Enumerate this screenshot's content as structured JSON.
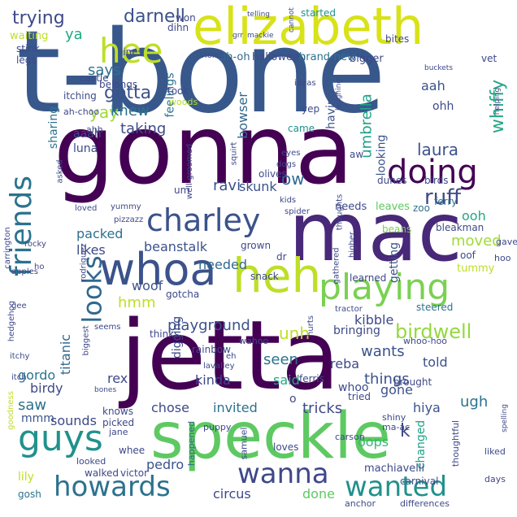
{
  "words": [
    {
      "t": "t-bone",
      "c": "#38588c"
    },
    {
      "t": "gonna",
      "c": "#440154"
    },
    {
      "t": "mac",
      "c": "#482878"
    },
    {
      "t": "jetta",
      "c": "#440154"
    },
    {
      "t": "speckle",
      "c": "#5ec962"
    },
    {
      "t": "elizabeth",
      "c": "#d8e219"
    },
    {
      "t": "whoa",
      "c": "#3b528b"
    },
    {
      "t": "heh",
      "c": "#bddf26"
    },
    {
      "t": "hee",
      "c": "#bddf26"
    },
    {
      "t": "doing",
      "c": "#440154"
    },
    {
      "t": "charley",
      "c": "#3b528b"
    },
    {
      "t": "friends",
      "c": "#2c728e"
    },
    {
      "t": "playing",
      "c": "#7ad151"
    },
    {
      "t": "guys",
      "c": "#21918c"
    },
    {
      "t": "howards",
      "c": "#2c728e"
    },
    {
      "t": "wanna",
      "c": "#3e4989"
    },
    {
      "t": "wanted",
      "c": "#21918c"
    },
    {
      "t": "looks",
      "c": "#31688e"
    },
    {
      "t": "birdwell",
      "c": "#95d840"
    },
    {
      "t": "trying",
      "c": "#3e4989"
    },
    {
      "t": "darnell",
      "c": "#3b528b"
    },
    {
      "t": "ya",
      "c": "#22a884"
    },
    {
      "t": "says",
      "c": "#2c728e"
    },
    {
      "t": "gotta",
      "c": "#3b528b"
    },
    {
      "t": "yay",
      "c": "#a0da39"
    },
    {
      "t": "knew",
      "c": "#2c728e"
    },
    {
      "t": "taking",
      "c": "#3e4989"
    },
    {
      "t": "whiffy",
      "c": "#22a884"
    },
    {
      "t": "ruff",
      "c": "#3e4989"
    },
    {
      "t": "laura",
      "c": "#3b528b"
    },
    {
      "t": "umbrella",
      "c": "#1fa188"
    },
    {
      "t": "ow",
      "c": "#31688e"
    },
    {
      "t": "ravi",
      "c": "#3b528b"
    },
    {
      "t": "skunk",
      "c": "#3b528b"
    },
    {
      "t": "packed",
      "c": "#2c728e"
    },
    {
      "t": "likes",
      "c": "#3e4989"
    },
    {
      "t": "beanstalk",
      "c": "#3b528b"
    },
    {
      "t": "moved",
      "c": "#a0da39"
    },
    {
      "t": "ooh",
      "c": "#22a884"
    },
    {
      "t": "needed",
      "c": "#31688e"
    },
    {
      "t": "woof",
      "c": "#3b528b"
    },
    {
      "t": "hmm",
      "c": "#bddf26"
    },
    {
      "t": "playground",
      "c": "#3b528b"
    },
    {
      "t": "unh",
      "c": "#bddf26"
    },
    {
      "t": "kibble",
      "c": "#3e4989"
    },
    {
      "t": "wants",
      "c": "#3b528b"
    },
    {
      "t": "titanic",
      "c": "#31688e"
    },
    {
      "t": "seen",
      "c": "#2c728e"
    },
    {
      "t": "reba",
      "c": "#3e4989"
    },
    {
      "t": "things",
      "c": "#3b528b"
    },
    {
      "t": "told",
      "c": "#3b528b"
    },
    {
      "t": "said",
      "c": "#22a884"
    },
    {
      "t": "gordo",
      "c": "#2c728e"
    },
    {
      "t": "rex",
      "c": "#3e4989"
    },
    {
      "t": "birdy",
      "c": "#3e4989"
    },
    {
      "t": "kinda",
      "c": "#3e4989"
    },
    {
      "t": "saw",
      "c": "#2c728e"
    },
    {
      "t": "chose",
      "c": "#3e4989"
    },
    {
      "t": "invited",
      "c": "#2c728e"
    },
    {
      "t": "tricks",
      "c": "#3e4989"
    },
    {
      "t": "gone",
      "c": "#3b528b"
    },
    {
      "t": "hiya",
      "c": "#3b528b"
    },
    {
      "t": "ugh",
      "c": "#2c728e"
    },
    {
      "t": "sounds",
      "c": "#3e4989"
    },
    {
      "t": "oops",
      "c": "#35b779"
    },
    {
      "t": "done",
      "c": "#5ec962"
    },
    {
      "t": "pedro",
      "c": "#3b528b"
    },
    {
      "t": "circus",
      "c": "#3e4989"
    },
    {
      "t": "bowser",
      "c": "#31688e"
    },
    {
      "t": "feelings",
      "c": "#2c728e"
    },
    {
      "t": "aah",
      "c": "#3b528b"
    },
    {
      "t": "ohh",
      "c": "#3e4989"
    },
    {
      "t": "aaah",
      "c": "#3e4989"
    },
    {
      "t": "luna",
      "c": "#3e4989"
    },
    {
      "t": "sharing",
      "c": "#2c728e"
    },
    {
      "t": "having",
      "c": "#3b528b"
    },
    {
      "t": "looking",
      "c": "#3b528b"
    },
    {
      "t": "digging",
      "c": "#3e4989"
    },
    {
      "t": "bringing",
      "c": "#3e4989"
    },
    {
      "t": "getting",
      "c": "#3b528b"
    },
    {
      "t": "whoo",
      "c": "#3e4989"
    },
    {
      "t": "mmm",
      "c": "#3b528b"
    },
    {
      "t": "lily",
      "c": "#bddf26"
    },
    {
      "t": "whee",
      "c": "#3e4989"
    },
    {
      "t": "changed",
      "c": "#1fa188"
    },
    {
      "t": "machiavelli",
      "c": "#3e4989"
    },
    {
      "t": "carnival",
      "c": "#3e4989"
    },
    {
      "t": "gosh",
      "c": "#2c728e"
    },
    {
      "t": "walked",
      "c": "#3e4989"
    },
    {
      "t": "victor",
      "c": "#3e4989"
    },
    {
      "t": "loves",
      "c": "#3e4989"
    },
    {
      "t": "samuel",
      "c": "#3e4989"
    },
    {
      "t": "happened",
      "c": "#31688e"
    },
    {
      "t": "halloween",
      "c": "#3e4989"
    },
    {
      "t": "brand-new",
      "c": "#2c728e"
    },
    {
      "t": "bigger",
      "c": "#3e4989"
    },
    {
      "t": "uh-oh",
      "c": "#31688e"
    },
    {
      "t": "yep",
      "c": "#3e4989"
    },
    {
      "t": "came",
      "c": "#21918c"
    },
    {
      "t": "took",
      "c": "#3e4989"
    },
    {
      "t": "woods",
      "c": "#b5de2b"
    },
    {
      "t": "belongs",
      "c": "#3e4989"
    },
    {
      "t": "castle",
      "c": "#3e4989"
    },
    {
      "t": "itching",
      "c": "#3e4989"
    },
    {
      "t": "ah-choo",
      "c": "#3e4989"
    },
    {
      "t": "ahh",
      "c": "#3e4989"
    },
    {
      "t": "lines",
      "c": "#3e4989"
    },
    {
      "t": "won",
      "c": "#3e4989"
    },
    {
      "t": "dihn",
      "c": "#3e4989"
    },
    {
      "t": "waiting",
      "c": "#bddf26"
    },
    {
      "t": "stink",
      "c": "#3e4989"
    },
    {
      "t": "legs",
      "c": "#3e4989"
    },
    {
      "t": "started",
      "c": "#21918c"
    },
    {
      "t": "bites",
      "c": "#3e4989"
    },
    {
      "t": "vet",
      "c": "#3e4989"
    },
    {
      "t": "olives",
      "c": "#3e4989"
    },
    {
      "t": "dunes",
      "c": "#3e4989"
    },
    {
      "t": "birds",
      "c": "#3e4989"
    },
    {
      "t": "aw",
      "c": "#3e4989"
    },
    {
      "t": "um",
      "c": "#3e4989"
    },
    {
      "t": "ferry",
      "c": "#2c728e"
    },
    {
      "t": "leaves",
      "c": "#5ec962"
    },
    {
      "t": "needs",
      "c": "#3e4989"
    },
    {
      "t": "zoo",
      "c": "#2c728e"
    },
    {
      "t": "bleakman",
      "c": "#3e4989"
    },
    {
      "t": "beans",
      "c": "#7ad151"
    },
    {
      "t": "grown",
      "c": "#3e4989"
    },
    {
      "t": "snack",
      "c": "#3e4989"
    },
    {
      "t": "dr",
      "c": "#3e4989"
    },
    {
      "t": "gave",
      "c": "#3e4989"
    },
    {
      "t": "hoo",
      "c": "#3e4989"
    },
    {
      "t": "oof",
      "c": "#3e4989"
    },
    {
      "t": "tummy",
      "c": "#bddf26"
    },
    {
      "t": "learned",
      "c": "#3e4989"
    },
    {
      "t": "gotcha",
      "c": "#3e4989"
    },
    {
      "t": "steered",
      "c": "#2c728e"
    },
    {
      "t": "thinks",
      "c": "#3e4989"
    },
    {
      "t": "rainbow",
      "c": "#3e4989"
    },
    {
      "t": "wahoo",
      "c": "#3e4989"
    },
    {
      "t": "whoo-hoo",
      "c": "#3e4989"
    },
    {
      "t": "tried",
      "c": "#3e4989"
    },
    {
      "t": "ferris",
      "c": "#3e4989"
    },
    {
      "t": "brought",
      "c": "#3e4989"
    },
    {
      "t": "knows",
      "c": "#3e4989"
    },
    {
      "t": "picked",
      "c": "#3e4989"
    },
    {
      "t": "jane",
      "c": "#3e4989"
    },
    {
      "t": "puppy",
      "c": "#3e4989"
    },
    {
      "t": "shiny",
      "c": "#3e4989"
    },
    {
      "t": "ma-ac",
      "c": "#3e4989"
    },
    {
      "t": "carson",
      "c": "#3e4989"
    },
    {
      "t": "liked",
      "c": "#3e4989"
    },
    {
      "t": "thoughtful",
      "c": "#3e4989"
    },
    {
      "t": "days",
      "c": "#3e4989"
    },
    {
      "t": "looked",
      "c": "#3e4989"
    },
    {
      "t": "anchor",
      "c": "#3e4989"
    },
    {
      "t": "differences",
      "c": "#3e4989"
    },
    {
      "t": "goodness",
      "c": "#bddf26"
    },
    {
      "t": "bones",
      "c": "#3e4989"
    },
    {
      "t": "itchy",
      "c": "#3e4989"
    },
    {
      "t": "itch",
      "c": "#3e4989"
    },
    {
      "t": "biggest",
      "c": "#3e4989"
    },
    {
      "t": "seems",
      "c": "#3e4989"
    },
    {
      "t": "hedgehog",
      "c": "#3e4989"
    },
    {
      "t": "gee",
      "c": "#3e4989"
    },
    {
      "t": "apples",
      "c": "#3e4989"
    },
    {
      "t": "rodriguez",
      "c": "#3e4989"
    },
    {
      "t": "ho",
      "c": "#3e4989"
    },
    {
      "t": "carrington",
      "c": "#3e4989"
    },
    {
      "t": "rocky",
      "c": "#3e4989"
    },
    {
      "t": "loved",
      "c": "#3e4989"
    },
    {
      "t": "yummy",
      "c": "#3e4989"
    },
    {
      "t": "pizzazz",
      "c": "#3e4989"
    },
    {
      "t": "asked",
      "c": "#3e4989"
    },
    {
      "t": "well-groomed",
      "c": "#3e4989"
    },
    {
      "t": "squirt",
      "c": "#3e4989"
    },
    {
      "t": "eyes",
      "c": "#3e4989"
    },
    {
      "t": "dogs",
      "c": "#3e4989"
    },
    {
      "t": "kids",
      "c": "#3e4989"
    },
    {
      "t": "spider",
      "c": "#3e4989"
    },
    {
      "t": "thoughts",
      "c": "#3e4989"
    },
    {
      "t": "gathered",
      "c": "#3e4989"
    },
    {
      "t": "higher",
      "c": "#3e4989"
    },
    {
      "t": "tractor",
      "c": "#3e4989"
    },
    {
      "t": "hurts",
      "c": "#3e4989"
    },
    {
      "t": "eh",
      "c": "#3e4989"
    },
    {
      "t": "lavalley",
      "c": "#3e4989"
    },
    {
      "t": "violet",
      "c": "#3e4989"
    },
    {
      "t": "ideas",
      "c": "#3e4989"
    },
    {
      "t": "laughing",
      "c": "#3e4989"
    },
    {
      "t": "helping",
      "c": "#3e4989"
    },
    {
      "t": "grr",
      "c": "#3e4989"
    },
    {
      "t": "mackie",
      "c": "#3e4989"
    },
    {
      "t": "telling",
      "c": "#3e4989"
    },
    {
      "t": "cannot",
      "c": "#3e4989"
    },
    {
      "t": "buckets",
      "c": "#3e4989"
    },
    {
      "t": "spelling",
      "c": "#3e4989"
    },
    {
      "t": "k",
      "c": "#3e4989"
    },
    {
      "t": "o",
      "c": "#3e4989"
    }
  ]
}
